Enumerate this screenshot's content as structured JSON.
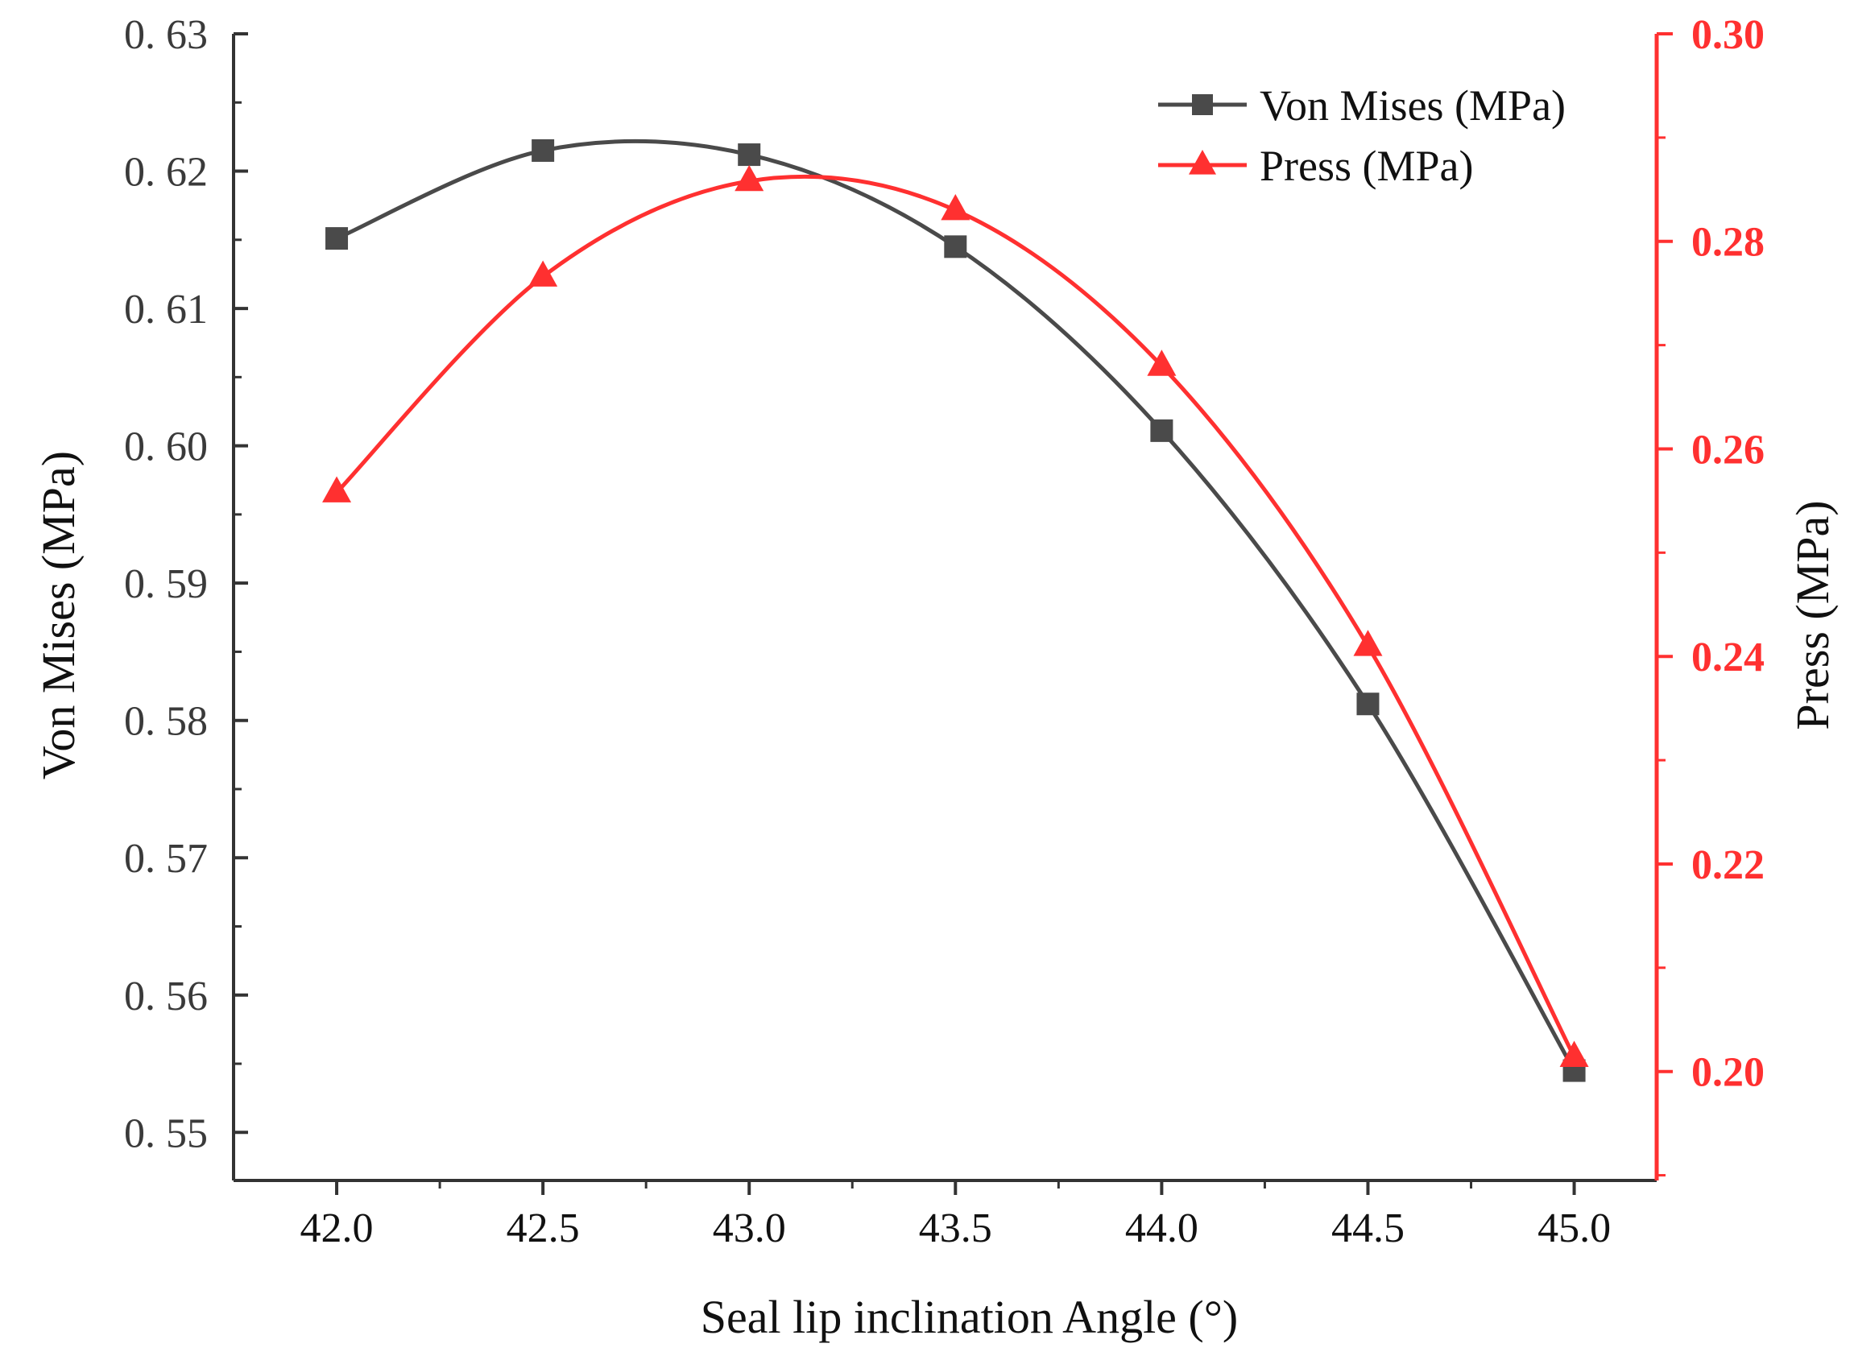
{
  "colors": {
    "von_mises": "#4a4a4a",
    "press": "#ff3030",
    "axis": "#333333",
    "background": "#ffffff"
  },
  "chart_data": {
    "type": "line",
    "title": "",
    "xlabel": "Seal lip inclination Angle (°)",
    "ylabel_left": "Von Mises (MPa)",
    "ylabel_right": "Press (MPa)",
    "x": [
      42.0,
      42.5,
      43.0,
      43.5,
      44.0,
      44.5,
      45.0
    ],
    "x_tick_labels": [
      "42.0",
      "42.5",
      "43.0",
      "43.5",
      "44.0",
      "44.5",
      "45.0"
    ],
    "xlim": [
      41.75,
      45.2
    ],
    "ylim_left": [
      0.5465,
      0.63
    ],
    "ylim_right": [
      0.1895,
      0.3
    ],
    "y_left_ticks": [
      0.55,
      0.56,
      0.57,
      0.58,
      0.59,
      0.6,
      0.61,
      0.62,
      0.63
    ],
    "y_left_tick_labels": [
      "0. 55",
      "0. 56",
      "0. 57",
      "0. 58",
      "0. 59",
      "0. 60",
      "0. 61",
      "0. 62",
      "0. 63"
    ],
    "y_right_ticks": [
      0.2,
      0.22,
      0.24,
      0.26,
      0.28,
      0.3
    ],
    "y_right_tick_labels": [
      "0.20",
      "0.22",
      "0.24",
      "0.26",
      "0.28",
      "0.30"
    ],
    "grid": false,
    "legend_position": "top-right",
    "series": [
      {
        "name": "Von Mises (MPa)",
        "axis": "left",
        "marker": "square",
        "color": "#4a4a4a",
        "values": [
          0.6151,
          0.6215,
          0.6212,
          0.6145,
          0.6011,
          0.5812,
          0.5545
        ]
      },
      {
        "name": "Press (MPa)",
        "axis": "right",
        "marker": "triangle",
        "color": "#ff3030",
        "values": [
          0.2558,
          0.2766,
          0.2858,
          0.283,
          0.268,
          0.241,
          0.2014
        ]
      }
    ]
  }
}
